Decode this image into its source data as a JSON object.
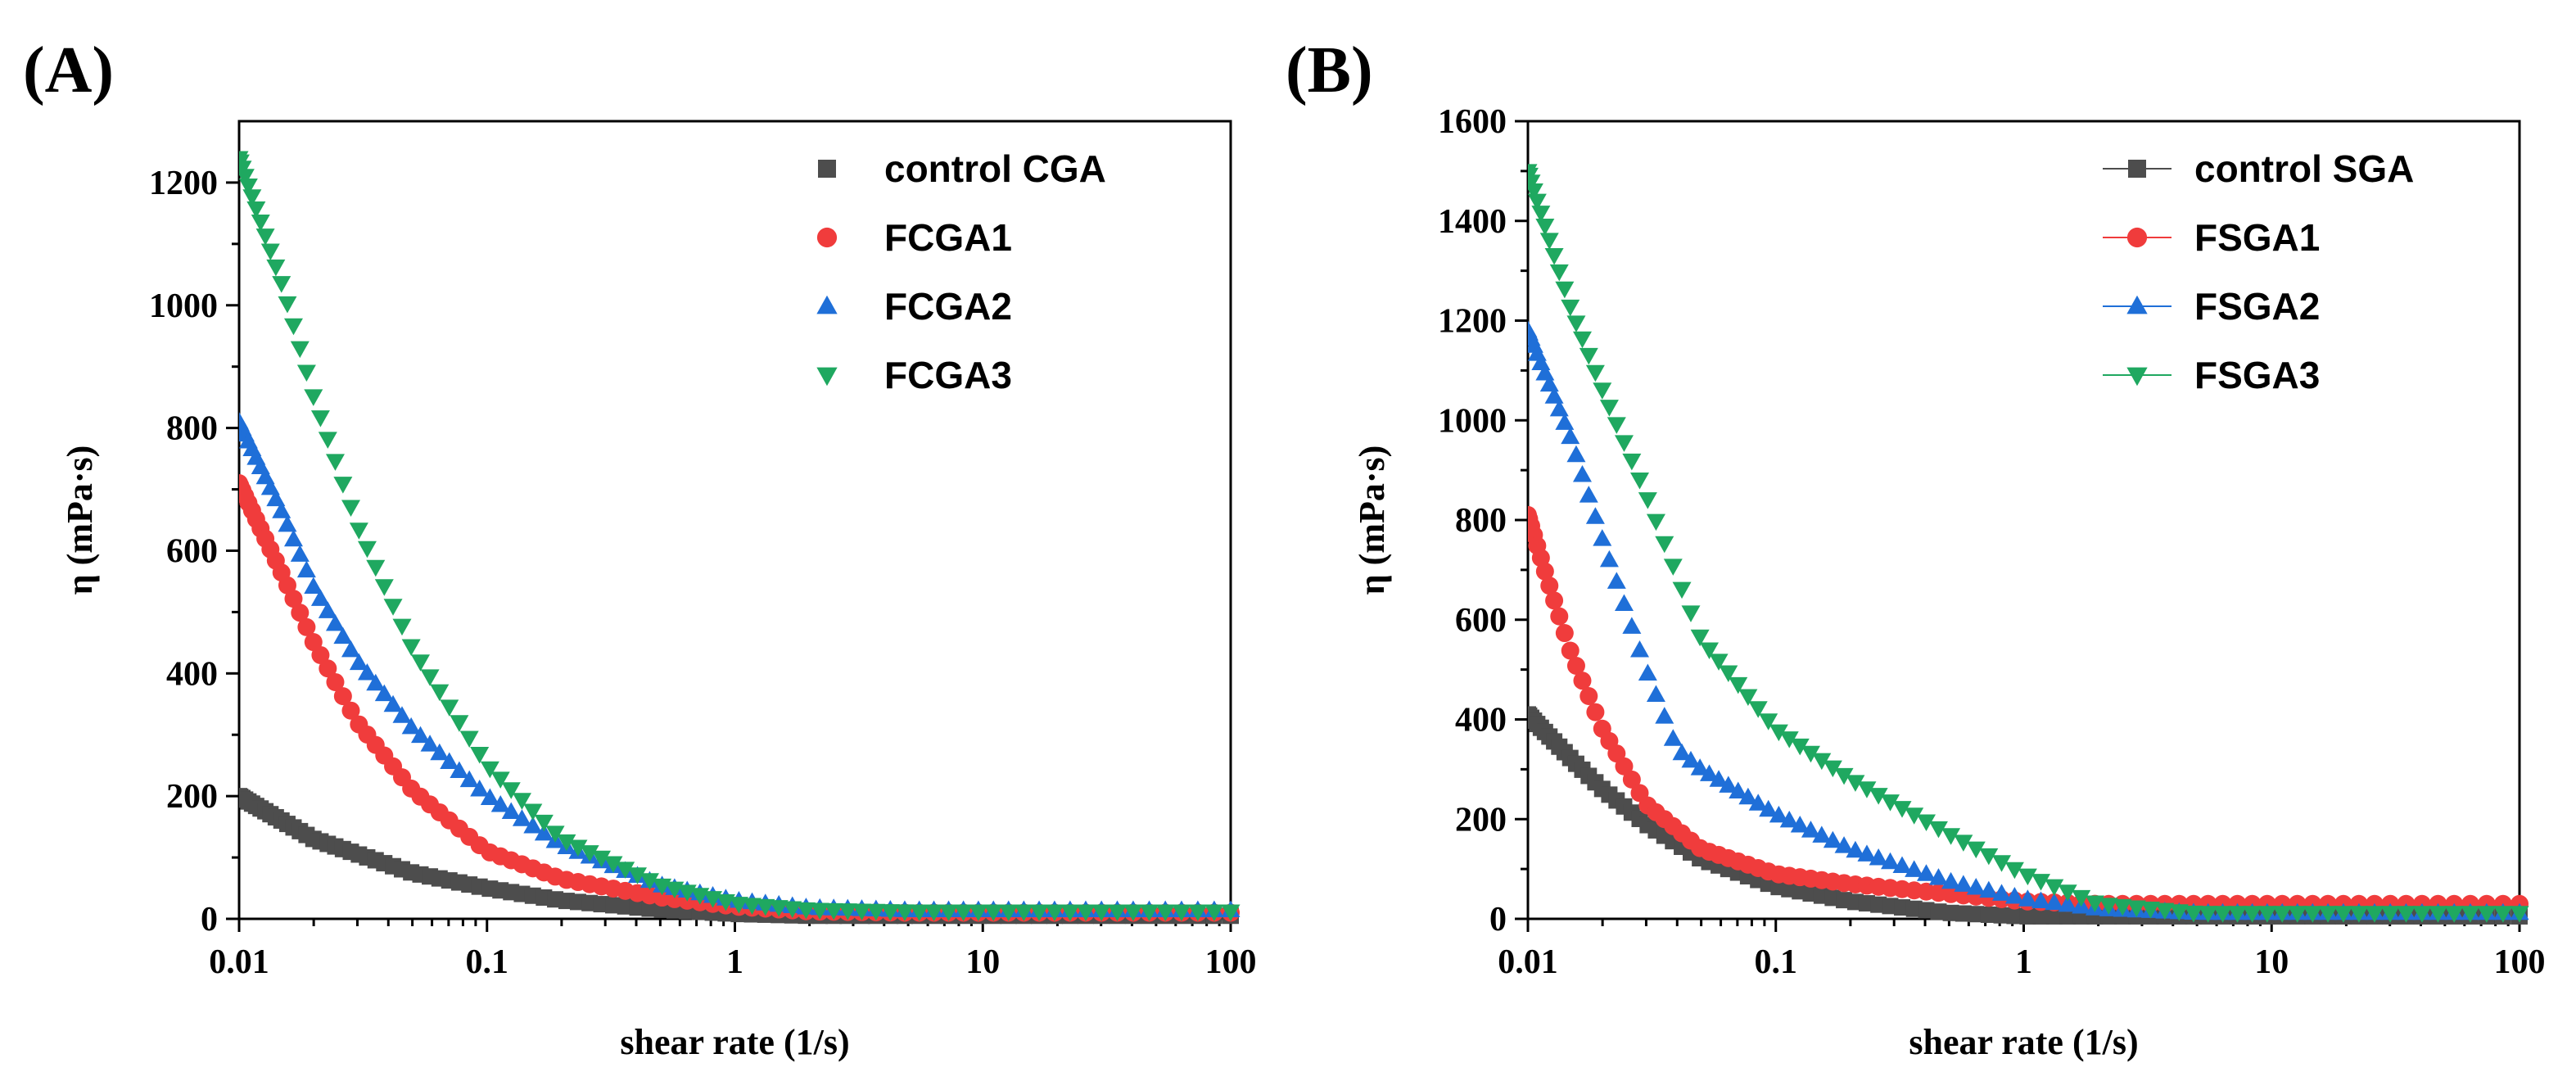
{
  "chart_data": [
    {
      "panel": "(A)",
      "type": "scatter",
      "xscale": "log",
      "xlim": [
        0.01,
        100
      ],
      "ylim": [
        0,
        1300
      ],
      "xticks": [
        0.01,
        0.1,
        1,
        10,
        100
      ],
      "xtick_labels": [
        "0.01",
        "0.1",
        "1",
        "10",
        "100"
      ],
      "yticks": [
        0,
        200,
        400,
        600,
        800,
        1000,
        1200
      ],
      "ytick_labels": [
        "0",
        "200",
        "400",
        "600",
        "800",
        "1000",
        "1200"
      ],
      "xlabel": "shear rate (1/s)",
      "ylabel": "η (mPa·s)",
      "legend_position": "top-right",
      "legend_lines": false,
      "series": [
        {
          "name": "control CGA",
          "marker": "square",
          "color": "#4d4d4d",
          "x": [
            0.01,
            0.02,
            0.05,
            0.1,
            0.2,
            0.5,
            1,
            2,
            5,
            10,
            100
          ],
          "y": [
            200,
            130,
            75,
            50,
            30,
            15,
            8,
            5,
            5,
            5,
            5
          ]
        },
        {
          "name": "FCGA1",
          "marker": "circle",
          "color": "#f03c3c",
          "x": [
            0.01,
            0.015,
            0.02,
            0.03,
            0.05,
            0.1,
            0.2,
            0.5,
            1,
            2,
            5,
            10,
            100
          ],
          "y": [
            710,
            560,
            450,
            320,
            210,
            110,
            65,
            35,
            20,
            12,
            10,
            10,
            10
          ]
        },
        {
          "name": "FCGA2",
          "marker": "triangle-up",
          "color": "#1f6fd8",
          "x": [
            0.01,
            0.015,
            0.02,
            0.03,
            0.05,
            0.1,
            0.2,
            0.5,
            1,
            2,
            5,
            10,
            100
          ],
          "y": [
            810,
            660,
            540,
            420,
            310,
            200,
            120,
            55,
            30,
            18,
            14,
            14,
            14
          ]
        },
        {
          "name": "FCGA3",
          "marker": "triangle-down",
          "color": "#1fa860",
          "x": [
            0.01,
            0.015,
            0.02,
            0.03,
            0.05,
            0.1,
            0.2,
            0.5,
            1,
            2,
            5,
            10,
            100
          ],
          "y": [
            1240,
            1030,
            850,
            640,
            440,
            250,
            130,
            55,
            25,
            15,
            12,
            12,
            12
          ]
        }
      ]
    },
    {
      "panel": "(B)",
      "type": "scatter",
      "xscale": "log",
      "xlim": [
        0.01,
        100
      ],
      "ylim": [
        0,
        1600
      ],
      "xticks": [
        0.01,
        0.1,
        1,
        10,
        100
      ],
      "xtick_labels": [
        "0.01",
        "0.1",
        "1",
        "10",
        "100"
      ],
      "yticks": [
        0,
        200,
        400,
        600,
        800,
        1000,
        1200,
        1400,
        1600
      ],
      "ytick_labels": [
        "0",
        "200",
        "400",
        "600",
        "800",
        "1000",
        "1200",
        "1400",
        "1600"
      ],
      "xlabel": "shear rate (1/s)",
      "ylabel": "η (mPa·s)",
      "legend_position": "top-right",
      "legend_lines": true,
      "series": [
        {
          "name": "control SGA",
          "marker": "square",
          "color": "#4d4d4d",
          "x": [
            0.01,
            0.015,
            0.02,
            0.03,
            0.05,
            0.1,
            0.2,
            0.5,
            1,
            2,
            5,
            10,
            100
          ],
          "y": [
            410,
            320,
            260,
            190,
            120,
            65,
            35,
            12,
            5,
            5,
            5,
            5,
            5
          ]
        },
        {
          "name": "FSGA1",
          "marker": "circle",
          "color": "#f03c3c",
          "x": [
            0.01,
            0.012,
            0.015,
            0.02,
            0.03,
            0.05,
            0.1,
            0.2,
            0.5,
            1,
            2,
            5,
            10,
            100
          ],
          "y": [
            810,
            680,
            530,
            380,
            230,
            140,
            90,
            70,
            50,
            35,
            30,
            30,
            30,
            30
          ]
        },
        {
          "name": "FSGA2",
          "marker": "triangle-up",
          "color": "#1f6fd8",
          "x": [
            0.01,
            0.015,
            0.02,
            0.03,
            0.04,
            0.05,
            0.1,
            0.2,
            0.5,
            1,
            2,
            5,
            10,
            100
          ],
          "y": [
            1180,
            960,
            760,
            500,
            340,
            300,
            210,
            140,
            75,
            40,
            20,
            12,
            12,
            12
          ]
        },
        {
          "name": "FSGA3",
          "marker": "triangle-down",
          "color": "#1fa860",
          "x": [
            0.01,
            0.015,
            0.02,
            0.03,
            0.05,
            0.1,
            0.2,
            0.5,
            1,
            2,
            5,
            10,
            100
          ],
          "y": [
            1500,
            1220,
            1060,
            850,
            560,
            380,
            280,
            170,
            90,
            30,
            12,
            12,
            12
          ]
        }
      ]
    }
  ]
}
